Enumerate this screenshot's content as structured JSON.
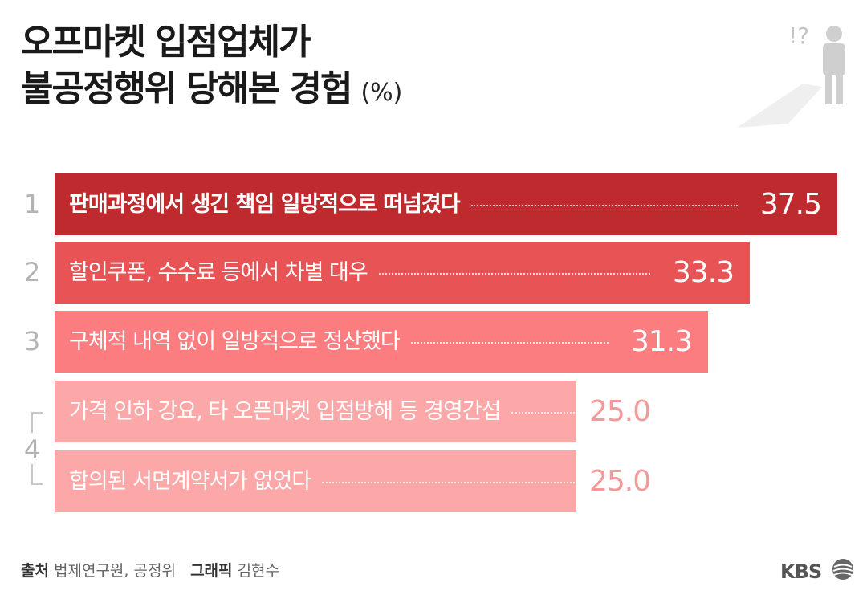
{
  "title": {
    "line1": "오프마켓 입점업체가",
    "line2": "불공정행위 당해본 경험",
    "unit": "(%)"
  },
  "illustration": {
    "icon": "person-question-icon",
    "text": "!?"
  },
  "chart_data": {
    "type": "bar",
    "orientation": "horizontal",
    "categories": [
      "판매과정에서 생긴 책임 일방적으로 떠넘겼다",
      "할인쿠폰, 수수료 등에서 차별 대우",
      "구체적 내역 없이 일방적으로 정산했다",
      "가격 인하 강요, 타 오픈마켓 입점방해 등 경영간섭",
      "합의된 서면계약서가 없었다"
    ],
    "values": [
      37.5,
      33.3,
      31.3,
      25.0,
      25.0
    ],
    "value_labels": [
      "37.5",
      "33.3",
      "31.3",
      "25.0",
      "25.0"
    ],
    "ranks": [
      "1",
      "2",
      "3",
      "4"
    ],
    "xlim": [
      0,
      37.5
    ],
    "colors": [
      "#be2a2e",
      "#e85456",
      "#fb7d7f",
      "#fca8a8",
      "#fca8a8"
    ],
    "grid": false,
    "legend": "none"
  },
  "footer": {
    "source_label": "출처",
    "source": "법제연구원, 공정위",
    "graphic_label": "그래픽",
    "graphic": "김현수"
  },
  "logo": {
    "text": "KBS",
    "icon": "kbs-logo-icon"
  }
}
